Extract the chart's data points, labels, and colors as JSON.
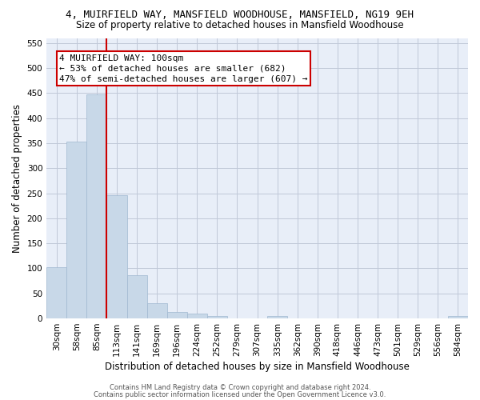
{
  "title_line1": "4, MUIRFIELD WAY, MANSFIELD WOODHOUSE, MANSFIELD, NG19 9EH",
  "title_line2": "Size of property relative to detached houses in Mansfield Woodhouse",
  "xlabel": "Distribution of detached houses by size in Mansfield Woodhouse",
  "ylabel": "Number of detached properties",
  "footer_line1": "Contains HM Land Registry data © Crown copyright and database right 2024.",
  "footer_line2": "Contains public sector information licensed under the Open Government Licence v3.0.",
  "bin_labels": [
    "30sqm",
    "58sqm",
    "85sqm",
    "113sqm",
    "141sqm",
    "169sqm",
    "196sqm",
    "224sqm",
    "252sqm",
    "279sqm",
    "307sqm",
    "335sqm",
    "362sqm",
    "390sqm",
    "418sqm",
    "446sqm",
    "473sqm",
    "501sqm",
    "529sqm",
    "556sqm",
    "584sqm"
  ],
  "bar_values": [
    103,
    353,
    448,
    246,
    87,
    30,
    13,
    9,
    5,
    0,
    0,
    5,
    0,
    0,
    0,
    0,
    0,
    0,
    0,
    0,
    5
  ],
  "bar_color": "#c8d8e8",
  "bar_edge_color": "#a0b8d0",
  "highlight_color": "#cc0000",
  "annotation_text": "4 MUIRFIELD WAY: 100sqm\n← 53% of detached houses are smaller (682)\n47% of semi-detached houses are larger (607) →",
  "annotation_box_color": "white",
  "annotation_box_edge_color": "#cc0000",
  "ylim": [
    0,
    560
  ],
  "yticks": [
    0,
    50,
    100,
    150,
    200,
    250,
    300,
    350,
    400,
    450,
    500,
    550
  ],
  "grid_color": "#c0c8d8",
  "background_color": "#e8eef8",
  "title_fontsize": 9,
  "subtitle_fontsize": 8.5,
  "axis_label_fontsize": 8.5,
  "tick_fontsize": 7.5,
  "annotation_fontsize": 8,
  "footer_fontsize": 6
}
